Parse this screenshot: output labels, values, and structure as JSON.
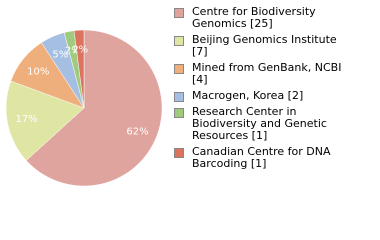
{
  "chart_data": {
    "type": "pie",
    "categories": [
      "Centre for Biodiversity Genomics [25]",
      "Beijing Genomics Institute [7]",
      "Mined from GenBank, NCBI [4]",
      "Macrogen, Korea [2]",
      "Research Center in Biodiversity and Genetic Resources [1]",
      "Canadian Centre for DNA Barcoding [1]"
    ],
    "values": [
      62,
      17,
      10,
      5,
      2,
      2
    ],
    "value_labels": [
      "62%",
      "17%",
      "10%",
      "5%",
      "2%",
      "2%"
    ],
    "colors": [
      "#e0a49e",
      "#dfe5a3",
      "#efaf7d",
      "#a4bfe2",
      "#a0cb7e",
      "#db735e"
    ]
  }
}
